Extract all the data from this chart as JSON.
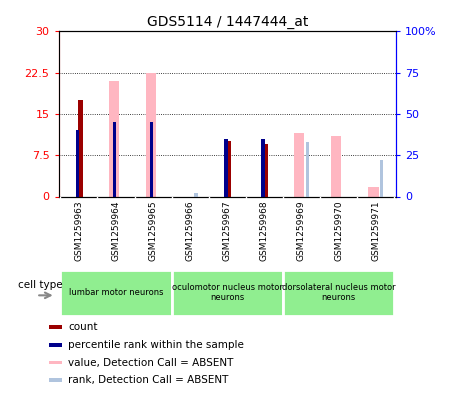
{
  "title": "GDS5114 / 1447444_at",
  "samples": [
    "GSM1259963",
    "GSM1259964",
    "GSM1259965",
    "GSM1259966",
    "GSM1259967",
    "GSM1259968",
    "GSM1259969",
    "GSM1259970",
    "GSM1259971"
  ],
  "count_values": [
    17.5,
    0,
    0,
    0,
    10.0,
    9.5,
    0,
    0,
    0
  ],
  "rank_values": [
    40,
    45,
    45,
    0,
    35,
    35,
    0,
    0,
    0
  ],
  "absent_value_values": [
    0,
    21.0,
    22.5,
    0,
    0,
    0,
    11.5,
    11.0,
    1.8
  ],
  "absent_rank_values": [
    0,
    0,
    0,
    2.0,
    0,
    0,
    33,
    0,
    22
  ],
  "left_ylim": [
    0,
    30
  ],
  "right_ylim": [
    0,
    100
  ],
  "left_yticks": [
    0,
    7.5,
    15,
    22.5,
    30
  ],
  "left_yticklabels": [
    "0",
    "7.5",
    "15",
    "22.5",
    "30"
  ],
  "right_yticks": [
    0,
    25,
    50,
    75,
    100
  ],
  "right_yticklabels": [
    "0",
    "25",
    "50",
    "75",
    "100%"
  ],
  "color_count": "#9B0000",
  "color_rank": "#00008B",
  "color_absent_value": "#FFB6C1",
  "color_absent_rank": "#B0C4DE",
  "cell_type_groups": [
    {
      "label": "lumbar motor neurons",
      "start": 0,
      "end": 3
    },
    {
      "label": "oculomotor nucleus motor\nneurons",
      "start": 3,
      "end": 6
    },
    {
      "label": "dorsolateral nucleus motor\nneurons",
      "start": 6,
      "end": 9
    }
  ],
  "cell_type_bg": "#90EE90",
  "xtick_bg": "#D3D3D3",
  "legend_labels": [
    "count",
    "percentile rank within the sample",
    "value, Detection Call = ABSENT",
    "rank, Detection Call = ABSENT"
  ],
  "legend_colors": [
    "#9B0000",
    "#00008B",
    "#FFB6C1",
    "#B0C4DE"
  ]
}
